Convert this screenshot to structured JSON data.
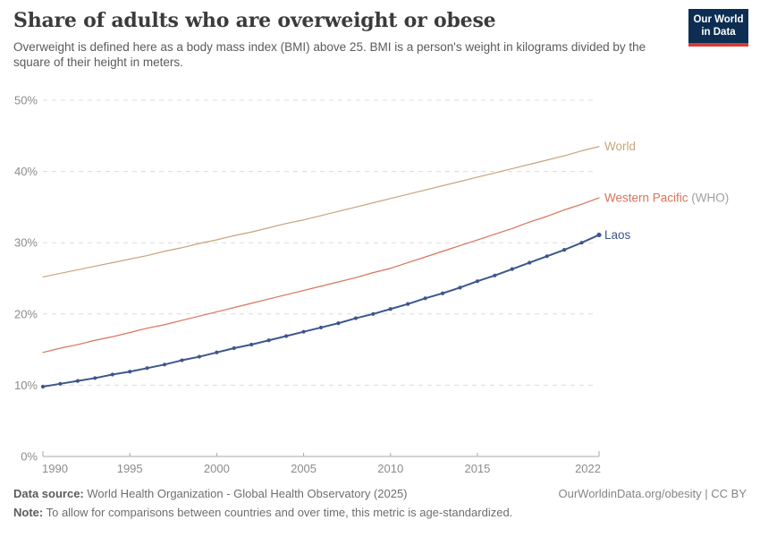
{
  "header": {
    "title": "Share of adults who are overweight or obese",
    "subtitle": "Overweight is defined here as a body mass index (BMI) above 25. BMI is a person's weight in kilograms divided by the square of their height in meters."
  },
  "logo": {
    "line1": "Our World",
    "line2": "in Data",
    "background_color": "#0d2e52",
    "stripe_color": "#d73c34"
  },
  "footer": {
    "data_source_label": "Data source:",
    "data_source_text": " World Health Organization - Global Health Observatory (2025)",
    "credit": "OurWorldinData.org/obesity | CC BY",
    "note_label": "Note:",
    "note_text": " To allow for comparisons between countries and over time, this metric is age-standardized."
  },
  "chart_data": {
    "type": "line",
    "title": "Share of adults who are overweight or obese",
    "xlabel": "",
    "ylabel": "",
    "xlim": [
      1990,
      2022
    ],
    "ylim": [
      0,
      50
    ],
    "grid": "horizontal-dashed",
    "legend_position": "right-of-line-ends",
    "x_ticks": [
      1990,
      1995,
      2000,
      2005,
      2010,
      2015,
      2022
    ],
    "x_tick_labels": [
      "1990",
      "1995",
      "2000",
      "2005",
      "2010",
      "2015",
      "2022"
    ],
    "y_ticks": [
      0,
      10,
      20,
      30,
      40,
      50
    ],
    "y_tick_labels": [
      "0%",
      "10%",
      "20%",
      "30%",
      "40%",
      "50%"
    ],
    "x": [
      1990,
      1991,
      1992,
      1993,
      1994,
      1995,
      1996,
      1997,
      1998,
      1999,
      2000,
      2001,
      2002,
      2003,
      2004,
      2005,
      2006,
      2007,
      2008,
      2009,
      2010,
      2011,
      2012,
      2013,
      2014,
      2015,
      2016,
      2017,
      2018,
      2019,
      2020,
      2021,
      2022
    ],
    "series": [
      {
        "name": "World",
        "label": "World",
        "label_suffix": "",
        "color": "#c8a47c",
        "line_width": 1.2,
        "markers": false,
        "values": [
          25.2,
          25.7,
          26.2,
          26.7,
          27.2,
          27.7,
          28.2,
          28.8,
          29.3,
          29.9,
          30.4,
          31.0,
          31.5,
          32.1,
          32.7,
          33.2,
          33.8,
          34.4,
          35.0,
          35.6,
          36.2,
          36.8,
          37.4,
          38.0,
          38.6,
          39.2,
          39.8,
          40.4,
          41.0,
          41.6,
          42.2,
          42.9,
          43.5
        ]
      },
      {
        "name": "Western Pacific (WHO)",
        "label": "Western Pacific",
        "label_suffix": " (WHO)",
        "color": "#d8735a",
        "line_width": 1.2,
        "markers": false,
        "values": [
          14.6,
          15.2,
          15.7,
          16.3,
          16.8,
          17.4,
          18.0,
          18.5,
          19.1,
          19.7,
          20.3,
          20.9,
          21.5,
          22.1,
          22.7,
          23.3,
          23.9,
          24.5,
          25.1,
          25.8,
          26.4,
          27.2,
          28.0,
          28.8,
          29.6,
          30.4,
          31.2,
          32.0,
          32.9,
          33.7,
          34.6,
          35.4,
          36.3
        ]
      },
      {
        "name": "Laos",
        "label": "Laos",
        "label_suffix": "",
        "color": "#3d568c",
        "line_width": 2,
        "markers": true,
        "values": [
          9.8,
          10.2,
          10.6,
          11.0,
          11.5,
          11.9,
          12.4,
          12.9,
          13.5,
          14.0,
          14.6,
          15.2,
          15.7,
          16.3,
          16.9,
          17.5,
          18.1,
          18.7,
          19.4,
          20.0,
          20.7,
          21.4,
          22.2,
          22.9,
          23.7,
          24.6,
          25.4,
          26.3,
          27.2,
          28.1,
          29.0,
          30.0,
          31.1
        ]
      }
    ],
    "label_suffix_color": "#a0a0a0",
    "gridline_color": "#dcdcdc",
    "axis_color": "#a8a8a8",
    "tick_label_color": "#8c8c8c"
  }
}
